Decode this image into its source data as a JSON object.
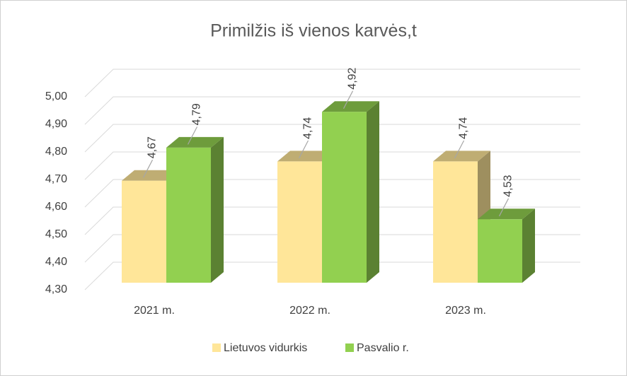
{
  "chart_data": {
    "type": "bar3d",
    "title": "Primilžis iš vienos karvės,t",
    "categories": [
      "2021 m.",
      "2022 m.",
      "2023 m."
    ],
    "series": [
      {
        "name": "Lietuvos vidurkis",
        "color": "#FFE699",
        "values": [
          4.67,
          4.74,
          4.74
        ],
        "value_labels": [
          "4,67",
          "4,74",
          "4,74"
        ]
      },
      {
        "name": "Pasvalio r.",
        "color": "#92D050",
        "values": [
          4.79,
          4.92,
          4.53
        ],
        "value_labels": [
          "4,79",
          "4,92",
          "4,53"
        ]
      }
    ],
    "ylim": [
      4.3,
      5.0
    ],
    "yticks": [
      {
        "value": 4.3,
        "label": "4,30"
      },
      {
        "value": 4.4,
        "label": "4,40"
      },
      {
        "value": 4.5,
        "label": "4,50"
      },
      {
        "value": 4.6,
        "label": "4,60"
      },
      {
        "value": 4.7,
        "label": "4,70"
      },
      {
        "value": 4.8,
        "label": "4,80"
      },
      {
        "value": 4.9,
        "label": "4,90"
      },
      {
        "value": 5.0,
        "label": "5,00"
      }
    ],
    "grid": true,
    "legend": "bottom"
  }
}
